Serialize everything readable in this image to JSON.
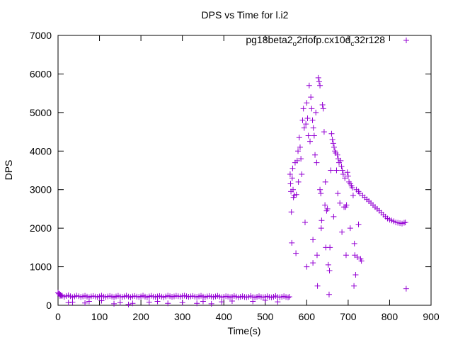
{
  "colors": {
    "series": "#9400d3",
    "axis": "#000000",
    "background": "#ffffff"
  },
  "chart_data": {
    "type": "scatter",
    "title": "DPS vs Time for l.i2",
    "xlabel": "Time(s)",
    "ylabel": "DPS",
    "xlim": [
      0,
      900
    ],
    "ylim": [
      0,
      7000
    ],
    "xticks": [
      "0",
      "100",
      "200",
      "300",
      "400",
      "500",
      "600",
      "700",
      "800",
      "900"
    ],
    "yticks": [
      "0",
      "1000",
      "2000",
      "3000",
      "4000",
      "5000",
      "6000",
      "7000"
    ],
    "grid": false,
    "legend_position": "top-right",
    "marker": "+",
    "series": [
      {
        "name": "pg18beta2_o2nofp.cx10d_c32r128",
        "legend_parts": [
          {
            "text": "pg18beta2",
            "sub": false
          },
          {
            "text": "o",
            "sub": true
          },
          {
            "text": "2nofp.cx10d",
            "sub": false
          },
          {
            "text": "c",
            "sub": true
          },
          {
            "text": "32r128",
            "sub": false
          }
        ],
        "points": [
          [
            0,
            330
          ],
          [
            2,
            300
          ],
          [
            4,
            290
          ],
          [
            6,
            270
          ],
          [
            8,
            250
          ],
          [
            10,
            245
          ],
          [
            20,
            240
          ],
          [
            30,
            235
          ],
          [
            40,
            230
          ],
          [
            50,
            235
          ],
          [
            60,
            230
          ],
          [
            70,
            225
          ],
          [
            80,
            230
          ],
          [
            90,
            225
          ],
          [
            100,
            230
          ],
          [
            110,
            225
          ],
          [
            120,
            230
          ],
          [
            130,
            225
          ],
          [
            140,
            230
          ],
          [
            150,
            225
          ],
          [
            160,
            230
          ],
          [
            170,
            225
          ],
          [
            180,
            230
          ],
          [
            190,
            225
          ],
          [
            200,
            230
          ],
          [
            210,
            225
          ],
          [
            220,
            230
          ],
          [
            230,
            225
          ],
          [
            240,
            230
          ],
          [
            250,
            225
          ],
          [
            260,
            230
          ],
          [
            270,
            235
          ],
          [
            280,
            230
          ],
          [
            290,
            235
          ],
          [
            300,
            240
          ],
          [
            310,
            235
          ],
          [
            320,
            230
          ],
          [
            330,
            225
          ],
          [
            340,
            230
          ],
          [
            350,
            225
          ],
          [
            360,
            230
          ],
          [
            370,
            225
          ],
          [
            380,
            230
          ],
          [
            390,
            225
          ],
          [
            400,
            220
          ],
          [
            410,
            225
          ],
          [
            420,
            220
          ],
          [
            430,
            225
          ],
          [
            440,
            220
          ],
          [
            450,
            215
          ],
          [
            460,
            220
          ],
          [
            470,
            215
          ],
          [
            480,
            220
          ],
          [
            490,
            215
          ],
          [
            500,
            220
          ],
          [
            510,
            215
          ],
          [
            520,
            220
          ],
          [
            530,
            215
          ],
          [
            540,
            220
          ],
          [
            550,
            215
          ],
          [
            558,
            220
          ],
          [
            5,
            240
          ],
          [
            15,
            220
          ],
          [
            25,
            260
          ],
          [
            35,
            210
          ],
          [
            45,
            250
          ],
          [
            55,
            215
          ],
          [
            65,
            245
          ],
          [
            75,
            210
          ],
          [
            85,
            240
          ],
          [
            95,
            215
          ],
          [
            105,
            250
          ],
          [
            115,
            215
          ],
          [
            125,
            240
          ],
          [
            135,
            210
          ],
          [
            145,
            245
          ],
          [
            155,
            215
          ],
          [
            165,
            250
          ],
          [
            175,
            210
          ],
          [
            185,
            240
          ],
          [
            195,
            215
          ],
          [
            205,
            250
          ],
          [
            215,
            210
          ],
          [
            225,
            245
          ],
          [
            235,
            215
          ],
          [
            245,
            240
          ],
          [
            255,
            210
          ],
          [
            265,
            250
          ],
          [
            275,
            220
          ],
          [
            285,
            245
          ],
          [
            295,
            225
          ],
          [
            305,
            250
          ],
          [
            315,
            220
          ],
          [
            325,
            240
          ],
          [
            335,
            215
          ],
          [
            345,
            245
          ],
          [
            355,
            210
          ],
          [
            365,
            240
          ],
          [
            375,
            215
          ],
          [
            385,
            245
          ],
          [
            395,
            210
          ],
          [
            405,
            235
          ],
          [
            415,
            210
          ],
          [
            425,
            240
          ],
          [
            435,
            205
          ],
          [
            445,
            235
          ],
          [
            455,
            210
          ],
          [
            465,
            240
          ],
          [
            475,
            205
          ],
          [
            485,
            235
          ],
          [
            495,
            210
          ],
          [
            505,
            235
          ],
          [
            515,
            205
          ],
          [
            525,
            240
          ],
          [
            535,
            210
          ],
          [
            545,
            235
          ],
          [
            555,
            205
          ],
          [
            25,
            70
          ],
          [
            35,
            80
          ],
          [
            65,
            60
          ],
          [
            75,
            100
          ],
          [
            105,
            120
          ],
          [
            135,
            40
          ],
          [
            150,
            70
          ],
          [
            170,
            20
          ],
          [
            180,
            50
          ],
          [
            220,
            80
          ],
          [
            240,
            100
          ],
          [
            265,
            50
          ],
          [
            300,
            70
          ],
          [
            335,
            50
          ],
          [
            350,
            100
          ],
          [
            370,
            40
          ],
          [
            395,
            90
          ],
          [
            420,
            110
          ],
          [
            470,
            100
          ],
          [
            500,
            130
          ],
          [
            530,
            90
          ],
          [
            560,
            3400
          ],
          [
            561,
            3150
          ],
          [
            562,
            2950
          ],
          [
            563,
            2420
          ],
          [
            564,
            1620
          ],
          [
            565,
            3300
          ],
          [
            566,
            3550
          ],
          [
            567,
            3000
          ],
          [
            568,
            2800
          ],
          [
            570,
            2850
          ],
          [
            572,
            3700
          ],
          [
            574,
            1350
          ],
          [
            575,
            2870
          ],
          [
            577,
            3750
          ],
          [
            579,
            4000
          ],
          [
            580,
            3200
          ],
          [
            582,
            4350
          ],
          [
            584,
            4100
          ],
          [
            586,
            3800
          ],
          [
            588,
            3400
          ],
          [
            590,
            4800
          ],
          [
            592,
            5100
          ],
          [
            594,
            4600
          ],
          [
            596,
            2150
          ],
          [
            598,
            4700
          ],
          [
            600,
            5250
          ],
          [
            602,
            4850
          ],
          [
            604,
            4400
          ],
          [
            606,
            5700
          ],
          [
            608,
            4250
          ],
          [
            610,
            5400
          ],
          [
            612,
            5100
          ],
          [
            614,
            4800
          ],
          [
            616,
            4600
          ],
          [
            618,
            4400
          ],
          [
            620,
            3900
          ],
          [
            622,
            5000
          ],
          [
            624,
            3700
          ],
          [
            626,
            500
          ],
          [
            628,
            5900
          ],
          [
            630,
            5800
          ],
          [
            632,
            5700
          ],
          [
            634,
            2900
          ],
          [
            636,
            2200
          ],
          [
            638,
            5200
          ],
          [
            640,
            5100
          ],
          [
            642,
            4500
          ],
          [
            644,
            2600
          ],
          [
            646,
            1500
          ],
          [
            648,
            2450
          ],
          [
            650,
            2500
          ],
          [
            652,
            1050
          ],
          [
            654,
            280
          ],
          [
            656,
            1500
          ],
          [
            658,
            3500
          ],
          [
            660,
            4450
          ],
          [
            662,
            4300
          ],
          [
            664,
            4200
          ],
          [
            666,
            4100
          ],
          [
            668,
            4000
          ],
          [
            670,
            3950
          ],
          [
            672,
            3500
          ],
          [
            674,
            3900
          ],
          [
            676,
            3800
          ],
          [
            678,
            3700
          ],
          [
            680,
            2650
          ],
          [
            682,
            3750
          ],
          [
            684,
            3600
          ],
          [
            686,
            3500
          ],
          [
            688,
            3400
          ],
          [
            690,
            2550
          ],
          [
            692,
            3300
          ],
          [
            694,
            2550
          ],
          [
            696,
            2600
          ],
          [
            698,
            3450
          ],
          [
            700,
            3350
          ],
          [
            702,
            3200
          ],
          [
            705,
            3150
          ],
          [
            708,
            3100
          ],
          [
            710,
            3050
          ],
          [
            712,
            2850
          ],
          [
            714,
            500
          ],
          [
            716,
            1300
          ],
          [
            718,
            790
          ],
          [
            720,
            3000
          ],
          [
            722,
            1250
          ],
          [
            725,
            2950
          ],
          [
            728,
            2900
          ],
          [
            730,
            1200
          ],
          [
            732,
            1150
          ],
          [
            735,
            2850
          ],
          [
            740,
            2800
          ],
          [
            745,
            2750
          ],
          [
            750,
            2700
          ],
          [
            755,
            2650
          ],
          [
            760,
            2600
          ],
          [
            765,
            2550
          ],
          [
            770,
            2500
          ],
          [
            775,
            2450
          ],
          [
            780,
            2400
          ],
          [
            785,
            2350
          ],
          [
            790,
            2300
          ],
          [
            795,
            2250
          ],
          [
            800,
            2220
          ],
          [
            805,
            2200
          ],
          [
            810,
            2180
          ],
          [
            815,
            2150
          ],
          [
            820,
            2140
          ],
          [
            825,
            2130
          ],
          [
            830,
            2120
          ],
          [
            835,
            2140
          ],
          [
            838,
            2150
          ],
          [
            840,
            430
          ],
          [
            600,
            1000
          ],
          [
            615,
            1100
          ],
          [
            625,
            1300
          ],
          [
            635,
            2000
          ],
          [
            645,
            3200
          ],
          [
            655,
            900
          ],
          [
            665,
            2300
          ],
          [
            675,
            2900
          ],
          [
            685,
            1900
          ],
          [
            695,
            1300
          ],
          [
            705,
            2000
          ],
          [
            715,
            1600
          ],
          [
            725,
            2100
          ],
          [
            615,
            1700
          ],
          [
            632,
            3000
          ]
        ]
      }
    ]
  }
}
